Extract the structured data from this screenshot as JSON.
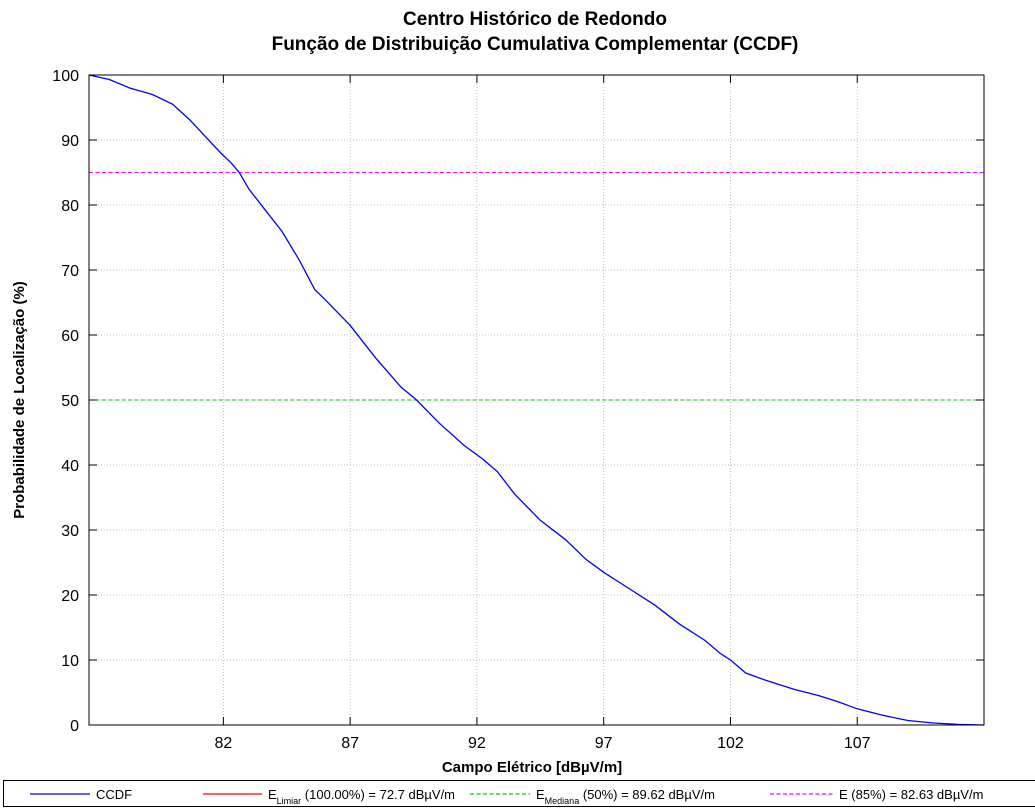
{
  "chart_data": {
    "type": "line",
    "title": [
      "Centro Histórico de Redondo",
      "Função de Distribuição Cumulativa Complementar (CCDF)"
    ],
    "xlabel": "Campo Elétrico [dBµV/m]",
    "ylabel": "Probabilidade de Localização (%)",
    "xlim": [
      76.7,
      112
    ],
    "ylim": [
      0,
      100
    ],
    "xticks": [
      82,
      87,
      92,
      97,
      102,
      107
    ],
    "yticks": [
      0,
      10,
      20,
      30,
      40,
      50,
      60,
      70,
      80,
      90,
      100
    ],
    "grid": true,
    "series": [
      {
        "name": "CCDF",
        "color": "#0000ff",
        "style": "solid",
        "x": [
          76.7,
          77.5,
          78.3,
          79.2,
          80.0,
          80.7,
          81.3,
          81.9,
          82.3,
          82.63,
          83.0,
          83.6,
          84.3,
          85.0,
          85.6,
          86.0,
          87.0,
          88.0,
          89.0,
          89.62,
          90.5,
          91.5,
          92.2,
          92.8,
          93.5,
          94.5,
          95.5,
          96.3,
          97.0,
          98.0,
          99.0,
          100.0,
          101.0,
          101.6,
          102.0,
          102.6,
          103.3,
          104.5,
          105.5,
          106.3,
          107.0,
          108.0,
          109.0,
          110.0,
          111.0,
          112.0
        ],
        "y": [
          100,
          99.3,
          98.0,
          97.0,
          95.5,
          93.0,
          90.5,
          88.0,
          86.5,
          85,
          82.5,
          79.5,
          76.0,
          71.5,
          67.0,
          65.5,
          61.5,
          56.5,
          52.0,
          50,
          46.5,
          43.0,
          41.0,
          39.0,
          35.5,
          31.5,
          28.5,
          25.5,
          23.5,
          21.0,
          18.5,
          15.5,
          13.0,
          11.0,
          10.0,
          8.0,
          7.0,
          5.5,
          4.5,
          3.5,
          2.5,
          1.5,
          0.7,
          0.3,
          0.1,
          0
        ]
      },
      {
        "name": "E_Limiar (100.00%) = 72.7 dBµV/m",
        "color": "#ff0000",
        "style": "solid",
        "x": [],
        "y": []
      },
      {
        "name": "E_Mediana (50%) = 89.62 dBµV/m",
        "color": "#00cc00",
        "style": "dashed",
        "hline": 50
      },
      {
        "name": "E (85%) = 82.63 dBµV/m",
        "color": "#ff00ff",
        "style": "dashed",
        "hline": 85
      }
    ],
    "legend": {
      "placement": "bottom",
      "entries": [
        {
          "main": "CCDF",
          "sub": "",
          "rest": "",
          "color": "#0000ff",
          "style": "solid"
        },
        {
          "main": "E",
          "sub": "Limiar",
          "rest": " (100.00%) = 72.7 dBµV/m",
          "color": "#ff0000",
          "style": "solid"
        },
        {
          "main": "E",
          "sub": "Mediana",
          "rest": " (50%) =  89.62 dBµV/m",
          "color": "#00cc00",
          "style": "dashed"
        },
        {
          "main": "E (85%) =  82.63 dBµV/m",
          "sub": "",
          "rest": "",
          "color": "#ff00ff",
          "style": "dashed"
        }
      ]
    }
  }
}
